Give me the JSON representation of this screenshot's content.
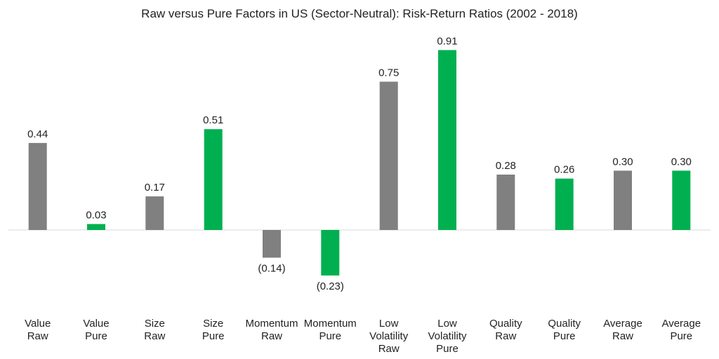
{
  "chart_data": {
    "type": "bar",
    "title": "Raw versus Pure Factors in US (Sector-Neutral): Risk-Return Ratios (2002 - 2018)",
    "categories": [
      "Value Raw",
      "Value Pure",
      "Size Raw",
      "Size Pure",
      "Momentum Raw",
      "Momentum Pure",
      "Low Volatility Raw",
      "Low Volatility Pure",
      "Quality Raw",
      "Quality Pure",
      "Average Raw",
      "Average Pure"
    ],
    "category_lines": [
      [
        "Value",
        "Raw"
      ],
      [
        "Value",
        "Pure"
      ],
      [
        "Size",
        "Raw"
      ],
      [
        "Size",
        "Pure"
      ],
      [
        "Momentum",
        "Raw"
      ],
      [
        "Momentum",
        "Pure"
      ],
      [
        "Low",
        "Volatility",
        "Raw"
      ],
      [
        "Low",
        "Volatility",
        "Pure"
      ],
      [
        "Quality",
        "Raw"
      ],
      [
        "Quality",
        "Pure"
      ],
      [
        "Average",
        "Raw"
      ],
      [
        "Average",
        "Pure"
      ]
    ],
    "values": [
      0.44,
      0.03,
      0.17,
      0.51,
      -0.14,
      -0.23,
      0.75,
      0.91,
      0.28,
      0.26,
      0.3,
      0.3
    ],
    "labels": [
      "0.44",
      "0.03",
      "0.17",
      "0.51",
      "(0.14)",
      "(0.23)",
      "0.75",
      "0.91",
      "0.28",
      "0.26",
      "0.30",
      "0.30"
    ],
    "colors": [
      "#808080",
      "#00b050",
      "#808080",
      "#00b050",
      "#808080",
      "#00b050",
      "#808080",
      "#00b050",
      "#808080",
      "#00b050",
      "#808080",
      "#00b050"
    ],
    "xlabel": "",
    "ylabel": "",
    "grid": false,
    "legend": "none"
  }
}
